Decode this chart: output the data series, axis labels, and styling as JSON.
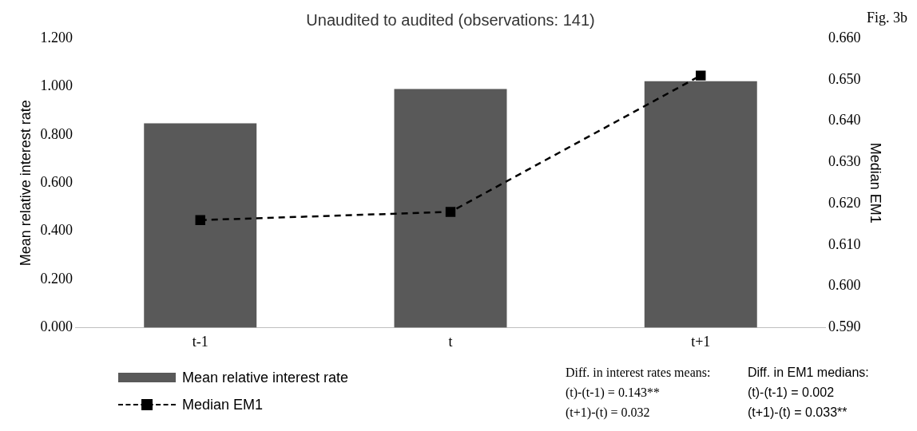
{
  "chart_data": {
    "type": "bar",
    "title": "Unaudited to audited (observations: 141)",
    "ylabel": "Mean relative interest rate",
    "y2label": "Median EM1",
    "categories": [
      "t-1",
      "t",
      "t+1"
    ],
    "series": [
      {
        "name": "Mean relative interest rate",
        "color": "#595959",
        "values": [
          0.847,
          0.99,
          1.022
        ]
      },
      {
        "name": "Median EM1",
        "type": "line",
        "axis": "y2",
        "color": "#000000",
        "marker": "square",
        "line_style": "dashed",
        "values": [
          0.616,
          0.618,
          0.651
        ]
      }
    ],
    "ylim": [
      0,
      1.2
    ],
    "yticks": [
      {
        "value": 0,
        "label": "0.000"
      },
      {
        "value": 0.2,
        "label": "0.200"
      },
      {
        "value": 0.4,
        "label": "0.400"
      },
      {
        "value": 0.6,
        "label": "0.600"
      },
      {
        "value": 0.8,
        "label": "0.800"
      },
      {
        "value": 1,
        "label": "1.000"
      },
      {
        "value": 1.2,
        "label": "1.200"
      }
    ],
    "y2lim": [
      0.59,
      0.66
    ],
    "y2ticks": [
      {
        "value": 0.59,
        "label": "0.590"
      },
      {
        "value": 0.6,
        "label": "0.600"
      },
      {
        "value": 0.61,
        "label": "0.610"
      },
      {
        "value": 0.62,
        "label": "0.620"
      },
      {
        "value": 0.63,
        "label": "0.630"
      },
      {
        "value": 0.64,
        "label": "0.640"
      },
      {
        "value": 0.65,
        "label": "0.650"
      },
      {
        "value": 0.66,
        "label": "0.660"
      }
    ],
    "grid": false,
    "legend": "bottom left",
    "annotations": [
      "Fig. 3b",
      "Diff. in interest rates means:\n(t)-(t-1) = 0.143**\n(t+1)-(t) = 0.032",
      "Diff. in EM1 medians:\n(t)-(t-1) = 0.002\n(t+1)-(t) = 0.033**"
    ]
  }
}
